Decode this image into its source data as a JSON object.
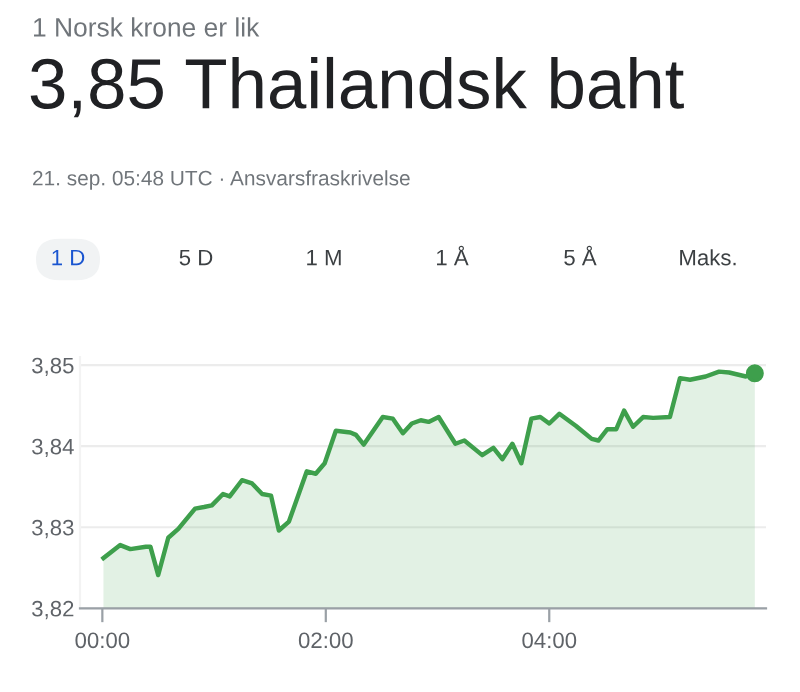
{
  "chart_data": {
    "type": "area",
    "subtitle": "1 Norsk krone er lik",
    "title": "3,85 Thailandsk baht",
    "annotations": [
      "21. sep. 05:48 UTC · Ansvarsfraskrivelse",
      "1 D",
      "5 D",
      "1 M",
      "1 Å",
      "5 Å",
      "Maks."
    ],
    "series": [
      {
        "color": "#3e9f4c",
        "x": [
          0.01,
          0.16,
          0.25,
          0.39,
          0.43,
          0.5,
          0.59,
          0.68,
          0.83,
          0.91,
          0.98,
          1.08,
          1.14,
          1.25,
          1.34,
          1.43,
          1.51,
          1.58,
          1.67,
          1.83,
          1.91,
          1.99,
          2.09,
          2.22,
          2.27,
          2.34,
          2.51,
          2.6,
          2.69,
          2.77,
          2.85,
          2.92,
          3.01,
          3.16,
          3.24,
          3.4,
          3.5,
          3.58,
          3.67,
          3.75,
          3.84,
          3.92,
          4.0,
          4.09,
          4.24,
          4.38,
          4.44,
          4.52,
          4.6,
          4.67,
          4.75,
          4.84,
          4.93,
          5.08,
          5.17,
          5.26,
          5.4,
          5.52,
          5.61,
          5.76,
          5.84
        ],
        "values": [
          3.8262,
          3.8278,
          3.8273,
          3.8276,
          3.8276,
          3.8241,
          3.8287,
          3.8298,
          3.8323,
          3.8325,
          3.8327,
          3.8341,
          3.8338,
          3.8358,
          3.8354,
          3.8341,
          3.8339,
          3.8296,
          3.8307,
          3.8369,
          3.8366,
          3.8379,
          3.8419,
          3.8417,
          3.8414,
          3.8402,
          3.8436,
          3.8434,
          3.8416,
          3.8428,
          3.8432,
          3.843,
          3.8436,
          3.8403,
          3.8407,
          3.8389,
          3.8398,
          3.8384,
          3.8403,
          3.8379,
          3.8434,
          3.8436,
          3.8428,
          3.844,
          3.8425,
          3.8409,
          3.8407,
          3.8421,
          3.8421,
          3.8444,
          3.8424,
          3.8436,
          3.8435,
          3.8436,
          3.8484,
          3.8482,
          3.8486,
          3.8492,
          3.8491,
          3.8486,
          3.849
        ]
      },
      {
        "type": "scatter",
        "color": "#3e9f4c",
        "x": [
          5.84
        ],
        "values": [
          3.849
        ],
        "marker": "circle"
      }
    ],
    "xlim": [
      -0.2,
      5.94
    ],
    "ylim": [
      3.82,
      3.851
    ],
    "xticks": [
      {
        "value": 0,
        "label": "00:00"
      },
      {
        "value": 2,
        "label": "02:00"
      },
      {
        "value": 4,
        "label": "04:00"
      }
    ],
    "yticks": [
      {
        "value": 3.82,
        "label": "3,82"
      },
      {
        "value": 3.83,
        "label": "3,83"
      },
      {
        "value": 3.84,
        "label": "3,84"
      },
      {
        "value": 3.85,
        "label": "3,85"
      }
    ],
    "grid": "y",
    "line_style": "solid"
  }
}
